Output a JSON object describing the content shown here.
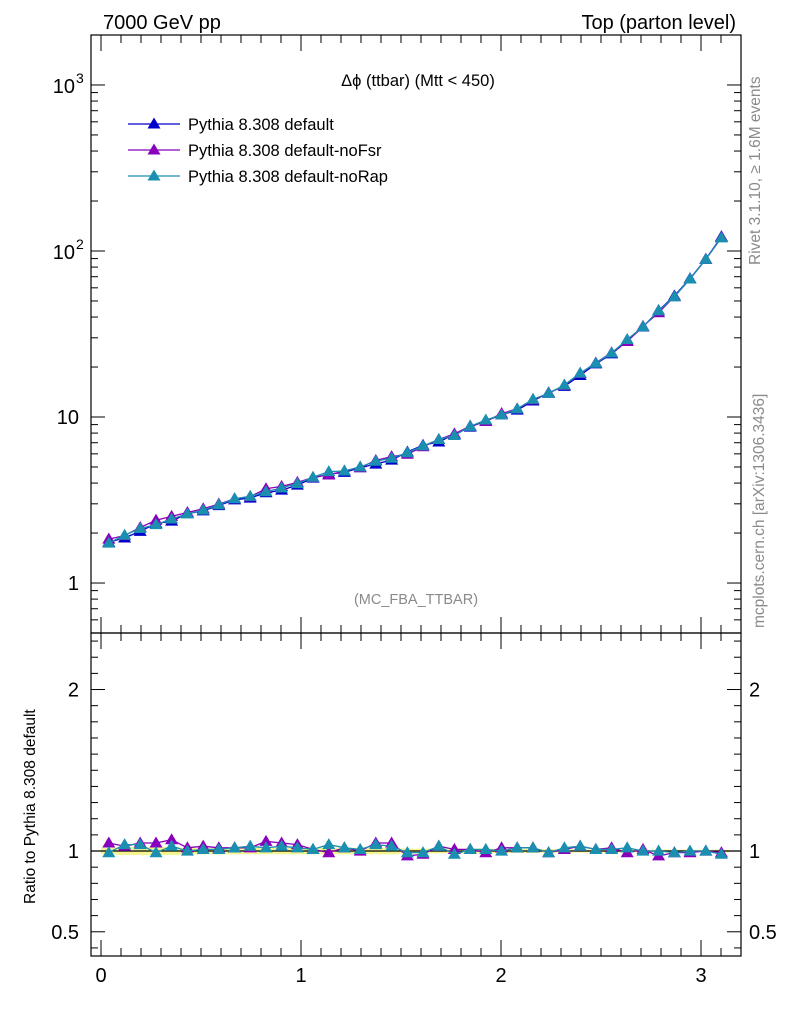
{
  "header": {
    "left": "7000 GeV pp",
    "right": "Top (parton level)"
  },
  "side_labels": {
    "rivet": "Rivet 3.1.10, ≥ 1.6M events",
    "source": "mcplots.cern.ch [arXiv:1306.3436]"
  },
  "chart_data": [
    {
      "type": "line",
      "title": "Δϕ (ttbar) (Mtt < 450)",
      "watermark": "(MC_FBA_TTBAR)",
      "yscale": "log",
      "ylim": [
        0.5,
        2000
      ],
      "xlim": [
        -0.05,
        3.2
      ],
      "ytick_labels": [
        {
          "value": 1,
          "label": "1"
        },
        {
          "value": 10,
          "label": "10"
        },
        {
          "value": 100,
          "label": "10",
          "exp": "2"
        },
        {
          "value": 1000,
          "label": "10",
          "exp": "3"
        }
      ],
      "legend_position": "top-left",
      "x": [
        0.039,
        0.118,
        0.196,
        0.275,
        0.353,
        0.432,
        0.511,
        0.589,
        0.668,
        0.746,
        0.825,
        0.903,
        0.982,
        1.06,
        1.139,
        1.217,
        1.296,
        1.374,
        1.453,
        1.532,
        1.61,
        1.689,
        1.767,
        1.846,
        1.924,
        2.003,
        2.081,
        2.16,
        2.238,
        2.317,
        2.396,
        2.474,
        2.553,
        2.631,
        2.71,
        2.788,
        2.867,
        2.945,
        3.024,
        3.102
      ],
      "series": [
        {
          "name": "Pythia 8.308 default",
          "color": "#0000cc",
          "values": [
            1.76,
            1.87,
            2.05,
            2.28,
            2.36,
            2.62,
            2.72,
            2.93,
            3.17,
            3.25,
            3.5,
            3.63,
            3.89,
            4.29,
            4.53,
            4.64,
            4.95,
            5.21,
            5.5,
            6.16,
            6.76,
            7.08,
            7.86,
            8.7,
            9.49,
            10.3,
            11.0,
            12.5,
            14.0,
            15.3,
            17.8,
            20.9,
            24.0,
            28.7,
            34.9,
            43.8,
            53.7,
            68.2,
            89.3,
            122
          ]
        },
        {
          "name": "Pythia 8.308 default-noFsr",
          "color": "#8800bb",
          "values": [
            1.84,
            1.93,
            2.16,
            2.39,
            2.52,
            2.66,
            2.8,
            2.99,
            3.22,
            3.31,
            3.7,
            3.82,
            4.04,
            4.32,
            4.48,
            4.73,
            4.96,
            5.48,
            5.77,
            5.97,
            6.62,
            7.32,
            7.92,
            8.82,
            9.4,
            10.5,
            11.2,
            12.7,
            13.9,
            15.5,
            18.3,
            21.2,
            24.4,
            28.5,
            35.2,
            42.5,
            53.1,
            67.8,
            89.0,
            121
          ]
        },
        {
          "name": "Pythia 8.308 default-noRap",
          "color": "#1a8fb0",
          "values": [
            1.74,
            1.94,
            2.13,
            2.25,
            2.43,
            2.61,
            2.75,
            2.96,
            3.22,
            3.33,
            3.55,
            3.74,
            3.97,
            4.34,
            4.69,
            4.73,
            5.01,
            5.42,
            5.65,
            6.1,
            6.7,
            7.32,
            7.74,
            8.79,
            9.6,
            10.3,
            11.2,
            12.8,
            13.9,
            15.6,
            18.4,
            21.1,
            24.3,
            29.3,
            35.0,
            43.7,
            53.0,
            67.9,
            89.1,
            120
          ]
        }
      ]
    },
    {
      "type": "line",
      "ylabel": "Ratio to Pythia 8.308 default",
      "ylim": [
        0.35,
        2.35
      ],
      "xlim": [
        -0.05,
        3.2
      ],
      "yticks": [
        0.5,
        1,
        2
      ],
      "xticks": [
        0,
        1,
        2,
        3
      ],
      "reference_line": 1,
      "band_color": "#f4f590",
      "band_halfwidth": [
        0.02,
        0.025,
        0.025,
        0.025,
        0.025,
        0.02,
        0.02,
        0.02,
        0.02,
        0.02,
        0.02,
        0.02,
        0.02,
        0.02,
        0.02,
        0.02,
        0.02,
        0.02,
        0.02,
        0.015,
        0.015,
        0.015,
        0.015,
        0.015,
        0.015,
        0.012,
        0.012,
        0.012,
        0.012,
        0.012,
        0.01,
        0.01,
        0.01,
        0.01,
        0.008,
        0.008,
        0.008,
        0.008,
        0.008,
        0.008
      ],
      "series": [
        {
          "name": "Pythia 8.308 default-noFsr",
          "color": "#8800bb",
          "values": [
            1.05,
            1.03,
            1.05,
            1.05,
            1.07,
            1.02,
            1.03,
            1.02,
            1.02,
            1.02,
            1.06,
            1.05,
            1.04,
            1.01,
            0.99,
            1.02,
            1.0,
            1.05,
            1.05,
            0.97,
            0.98,
            1.03,
            1.01,
            1.01,
            0.99,
            1.02,
            1.02,
            1.02,
            0.99,
            1.01,
            1.03,
            1.01,
            1.02,
            0.99,
            1.01,
            0.97,
            0.99,
            0.99,
            1.0,
            0.99
          ]
        },
        {
          "name": "Pythia 8.308 default-noRap",
          "color": "#1a8fb0",
          "values": [
            0.99,
            1.04,
            1.04,
            0.99,
            1.03,
            1.0,
            1.01,
            1.01,
            1.02,
            1.03,
            1.02,
            1.03,
            1.02,
            1.01,
            1.04,
            1.02,
            1.01,
            1.04,
            1.03,
            0.99,
            0.99,
            1.03,
            0.98,
            1.01,
            1.01,
            1.0,
            1.02,
            1.02,
            0.99,
            1.02,
            1.03,
            1.01,
            1.01,
            1.02,
            1.0,
            1.0,
            0.99,
            1.0,
            1.0,
            0.98
          ]
        }
      ]
    }
  ]
}
